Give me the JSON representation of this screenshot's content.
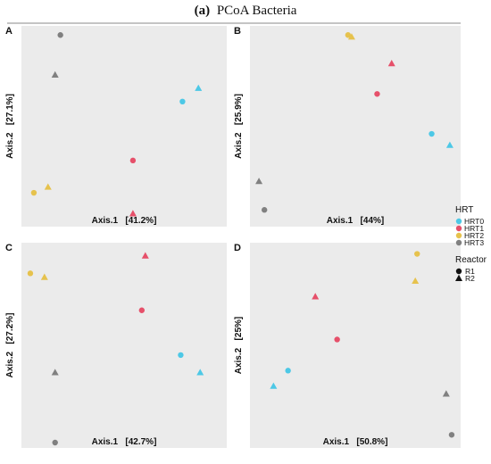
{
  "figure": {
    "title_prefix": "(a)",
    "title_text": "PCoA Bacteria"
  },
  "legend": {
    "color_title": "HRT",
    "color_items": [
      {
        "label": "HRT0",
        "color": "#4dc8e6"
      },
      {
        "label": "HRT1",
        "color": "#e6506a"
      },
      {
        "label": "HRT2",
        "color": "#e6c24d"
      },
      {
        "label": "HRT3",
        "color": "#808080"
      }
    ],
    "shape_title": "Reactor",
    "shape_items": [
      {
        "label": "R1",
        "shape": "circle"
      },
      {
        "label": "R2",
        "shape": "triangle"
      }
    ]
  },
  "chart_data": [
    {
      "type": "scatter",
      "panel": "A",
      "xlabel": "Axis.1   [41.2%]",
      "ylabel": "Axis.2   [27.1%]",
      "xlim": [
        -0.55,
        0.55
      ],
      "ylim": [
        -0.5,
        0.5
      ],
      "grid": false,
      "points": [
        {
          "hrt": "HRT0",
          "reactor": "R1",
          "x": 0.33,
          "y": 0.13
        },
        {
          "hrt": "HRT0",
          "reactor": "R2",
          "x": 0.42,
          "y": 0.2
        },
        {
          "hrt": "HRT1",
          "reactor": "R1",
          "x": 0.05,
          "y": -0.18
        },
        {
          "hrt": "HRT1",
          "reactor": "R2",
          "x": 0.05,
          "y": -0.46
        },
        {
          "hrt": "HRT2",
          "reactor": "R1",
          "x": -0.51,
          "y": -0.35
        },
        {
          "hrt": "HRT2",
          "reactor": "R2",
          "x": -0.43,
          "y": -0.32
        },
        {
          "hrt": "HRT3",
          "reactor": "R1",
          "x": -0.36,
          "y": 0.48
        },
        {
          "hrt": "HRT3",
          "reactor": "R2",
          "x": -0.39,
          "y": 0.27
        }
      ]
    },
    {
      "type": "scatter",
      "panel": "B",
      "xlabel": "Axis.1   [44%]",
      "ylabel": "Axis.2   [25.9%]",
      "xlim": [
        -0.55,
        0.55
      ],
      "ylim": [
        -0.5,
        0.5
      ],
      "grid": false,
      "points": [
        {
          "hrt": "HRT0",
          "reactor": "R1",
          "x": 0.42,
          "y": -0.04
        },
        {
          "hrt": "HRT0",
          "reactor": "R2",
          "x": 0.52,
          "y": -0.1
        },
        {
          "hrt": "HRT1",
          "reactor": "R1",
          "x": 0.12,
          "y": 0.17
        },
        {
          "hrt": "HRT1",
          "reactor": "R2",
          "x": 0.2,
          "y": 0.33
        },
        {
          "hrt": "HRT2",
          "reactor": "R1",
          "x": -0.04,
          "y": 0.48
        },
        {
          "hrt": "HRT2",
          "reactor": "R2",
          "x": -0.02,
          "y": 0.47
        },
        {
          "hrt": "HRT3",
          "reactor": "R1",
          "x": -0.5,
          "y": -0.44
        },
        {
          "hrt": "HRT3",
          "reactor": "R2",
          "x": -0.53,
          "y": -0.29
        }
      ]
    },
    {
      "type": "scatter",
      "panel": "C",
      "xlabel": "Axis.1   [42.7%]",
      "ylabel": "Axis.2   [27.2%]",
      "xlim": [
        -0.55,
        0.55
      ],
      "ylim": [
        -0.5,
        0.5
      ],
      "grid": false,
      "points": [
        {
          "hrt": "HRT0",
          "reactor": "R1",
          "x": 0.32,
          "y": -0.05
        },
        {
          "hrt": "HRT0",
          "reactor": "R2",
          "x": 0.43,
          "y": -0.14
        },
        {
          "hrt": "HRT1",
          "reactor": "R1",
          "x": 0.1,
          "y": 0.18
        },
        {
          "hrt": "HRT1",
          "reactor": "R2",
          "x": 0.12,
          "y": 0.46
        },
        {
          "hrt": "HRT2",
          "reactor": "R1",
          "x": -0.53,
          "y": 0.37
        },
        {
          "hrt": "HRT2",
          "reactor": "R2",
          "x": -0.45,
          "y": 0.35
        },
        {
          "hrt": "HRT3",
          "reactor": "R1",
          "x": -0.39,
          "y": -0.5
        },
        {
          "hrt": "HRT3",
          "reactor": "R2",
          "x": -0.39,
          "y": -0.14
        }
      ]
    },
    {
      "type": "scatter",
      "panel": "D",
      "xlabel": "Axis.1   [50.8%]",
      "ylabel": "Axis.2   [25%]",
      "xlim": [
        -0.55,
        0.55
      ],
      "ylim": [
        -0.5,
        0.5
      ],
      "grid": false,
      "points": [
        {
          "hrt": "HRT0",
          "reactor": "R1",
          "x": -0.37,
          "y": -0.13
        },
        {
          "hrt": "HRT0",
          "reactor": "R2",
          "x": -0.45,
          "y": -0.21
        },
        {
          "hrt": "HRT1",
          "reactor": "R1",
          "x": -0.1,
          "y": 0.03
        },
        {
          "hrt": "HRT1",
          "reactor": "R2",
          "x": -0.22,
          "y": 0.25
        },
        {
          "hrt": "HRT2",
          "reactor": "R1",
          "x": 0.34,
          "y": 0.47
        },
        {
          "hrt": "HRT2",
          "reactor": "R2",
          "x": 0.33,
          "y": 0.33
        },
        {
          "hrt": "HRT3",
          "reactor": "R1",
          "x": 0.53,
          "y": -0.46
        },
        {
          "hrt": "HRT3",
          "reactor": "R2",
          "x": 0.5,
          "y": -0.25
        }
      ]
    }
  ]
}
